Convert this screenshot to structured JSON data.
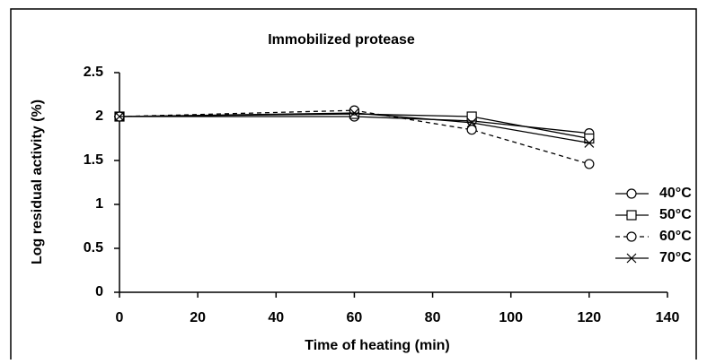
{
  "chart_data": {
    "type": "line",
    "title": "Immobilized protease",
    "xlabel": "Time of heating (min)",
    "ylabel": "Log residual activity (%)",
    "x": [
      0,
      60,
      90,
      120
    ],
    "series": [
      {
        "name": "40°C",
        "color": "#000000",
        "marker": "circle",
        "linestyle": "solid",
        "values": [
          2,
          2.0,
          1.95,
          1.81
        ]
      },
      {
        "name": "50°C",
        "color": "#000000",
        "marker": "square",
        "linestyle": "solid",
        "values": [
          2,
          2.03,
          2.0,
          1.75
        ]
      },
      {
        "name": "60°C",
        "color": "#000000",
        "marker": "circle",
        "linestyle": "dashed",
        "values": [
          2,
          2.07,
          1.85,
          1.46
        ]
      },
      {
        "name": "70°C",
        "color": "#000000",
        "marker": "x",
        "linestyle": "solid",
        "values": [
          2,
          2.04,
          1.93,
          1.7
        ]
      }
    ],
    "xlim": [
      0,
      140
    ],
    "xticks": [
      0,
      20,
      40,
      60,
      80,
      100,
      120,
      140
    ],
    "ylim": [
      0,
      2.5
    ],
    "yticks": [
      0,
      0.5,
      1,
      1.5,
      2,
      2.5
    ],
    "legend": "right"
  }
}
